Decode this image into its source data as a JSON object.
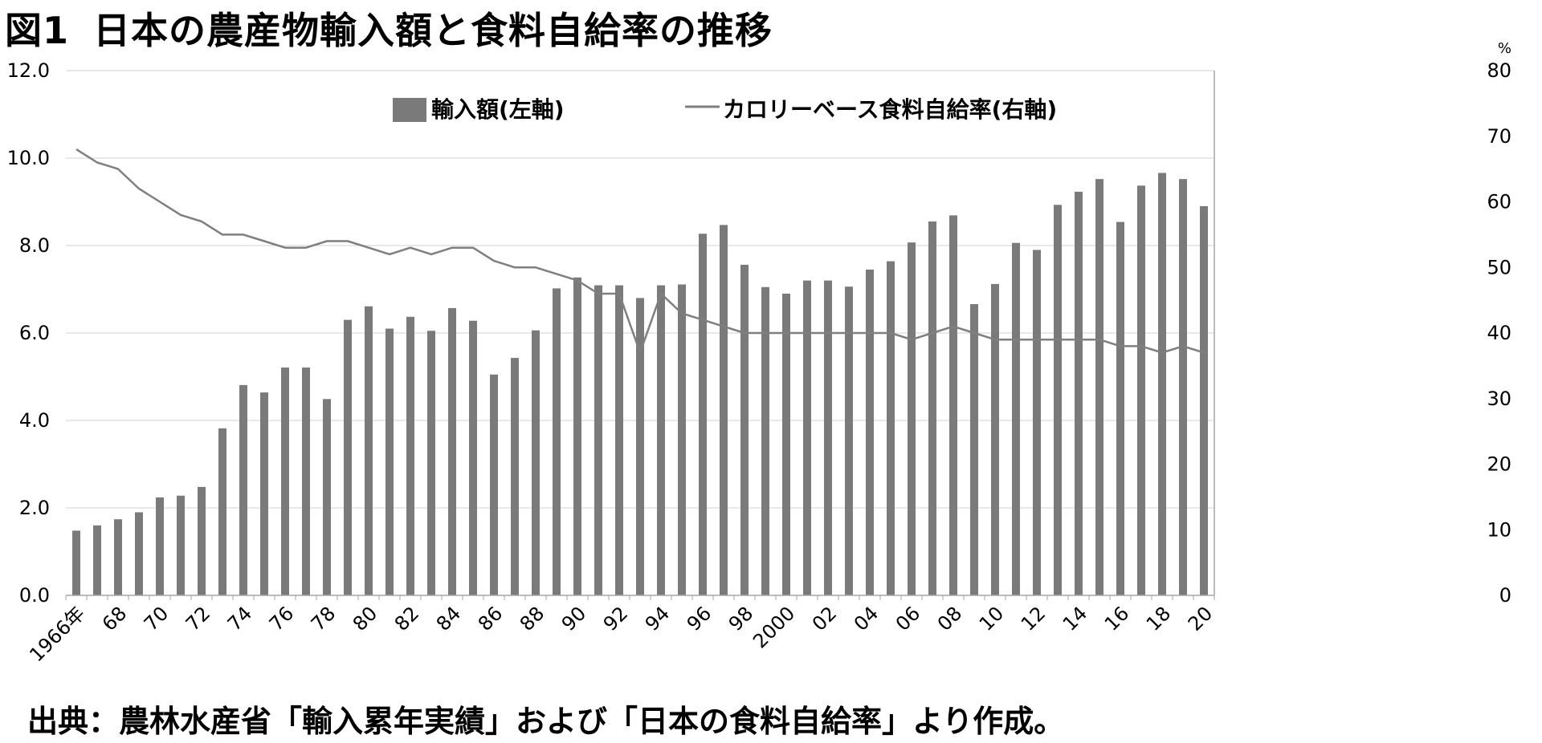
{
  "figure": {
    "label": "図1",
    "title": "日本の農産物輸入額と食料自給率の推移",
    "source": "出典：農林水産省「輸入累年実績」および「日本の食料自給率」より作成。"
  },
  "chart_data": {
    "type": "bar",
    "title": "日本の農産物輸入額と食料自給率の推移",
    "categories": [
      "1966",
      "1967",
      "1968",
      "1969",
      "1970",
      "1971",
      "1972",
      "1973",
      "1974",
      "1975",
      "1976",
      "1977",
      "1978",
      "1979",
      "1980",
      "1981",
      "1982",
      "1983",
      "1984",
      "1985",
      "1986",
      "1987",
      "1988",
      "1989",
      "1990",
      "1991",
      "1992",
      "1993",
      "1994",
      "1995",
      "1996",
      "1997",
      "1998",
      "1999",
      "2000",
      "2001",
      "2002",
      "2003",
      "2004",
      "2005",
      "2006",
      "2007",
      "2008",
      "2009",
      "2010",
      "2011",
      "2012",
      "2013",
      "2014",
      "2015",
      "2016",
      "2017",
      "2018",
      "2019",
      "2020"
    ],
    "x_tick_labels": [
      "1966年",
      "68",
      "70",
      "72",
      "74",
      "76",
      "78",
      "80",
      "82",
      "84",
      "86",
      "88",
      "90",
      "92",
      "94",
      "96",
      "98",
      "2000",
      "02",
      "04",
      "06",
      "08",
      "10",
      "12",
      "14",
      "16",
      "18",
      "20"
    ],
    "series": [
      {
        "name": "輸入額(左軸)",
        "type": "bar",
        "axis": "left",
        "color": "#7a7a7a",
        "values": [
          1.48,
          1.6,
          1.74,
          1.9,
          2.24,
          2.28,
          2.48,
          3.82,
          4.81,
          4.64,
          5.21,
          5.21,
          4.49,
          6.3,
          6.61,
          6.1,
          6.37,
          6.05,
          6.57,
          6.28,
          5.05,
          5.43,
          6.06,
          7.02,
          7.27,
          7.09,
          7.09,
          6.8,
          7.09,
          7.11,
          8.27,
          8.47,
          7.56,
          7.05,
          6.9,
          7.2,
          7.2,
          7.06,
          7.45,
          7.64,
          8.07,
          8.55,
          8.69,
          6.66,
          7.12,
          8.06,
          7.9,
          8.93,
          9.23,
          9.52,
          8.54,
          9.37,
          9.66,
          9.52,
          8.9
        ]
      },
      {
        "name": "カロリーベース食料自給率(右軸)",
        "type": "line",
        "axis": "right",
        "color": "#7f7f7f",
        "values": [
          68,
          66,
          65,
          62,
          60,
          58,
          57,
          55,
          55,
          54,
          53,
          53,
          54,
          54,
          53,
          52,
          53,
          52,
          53,
          53,
          51,
          50,
          50,
          49,
          48,
          46,
          46,
          37,
          46,
          43,
          42,
          41,
          40,
          40,
          40,
          40,
          40,
          40,
          40,
          40,
          39,
          40,
          41,
          40,
          39,
          39,
          39,
          39,
          39,
          39,
          38,
          38,
          37,
          38,
          37
        ]
      }
    ],
    "y_left": {
      "ylim": [
        0,
        12
      ],
      "ticks": [
        "0.0",
        "2.0",
        "4.0",
        "6.0",
        "8.0",
        "10.0",
        "12.0"
      ]
    },
    "y_right": {
      "ylim": [
        0,
        80
      ],
      "ticks": [
        "0",
        "10",
        "20",
        "30",
        "40",
        "50",
        "60",
        "70",
        "80"
      ],
      "unit": "%"
    },
    "grid": true,
    "legend_position": "top-center"
  },
  "style": {
    "bar_color": "#7a7a7a",
    "line_color": "#7f7f7f",
    "grid_color": "#d0d0d0",
    "axis_color": "#a6a6a6"
  }
}
